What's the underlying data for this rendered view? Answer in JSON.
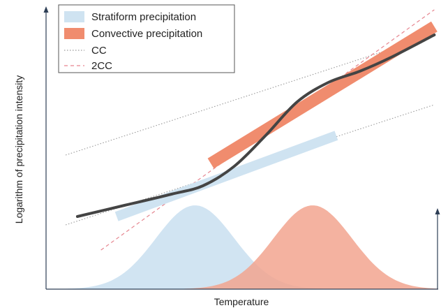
{
  "chart_data": {
    "type": "line",
    "title": "",
    "xlabel": "Temperature",
    "ylabel": "Logarithm of precipitation intensity",
    "x_scale": "qualitative",
    "y_scale": "log",
    "grid": false,
    "legend_position": "top-left",
    "series": [
      {
        "name": "Stratiform precipitation",
        "kind": "band",
        "color": "#cfe3f1",
        "x": [
          0.18,
          0.74
        ],
        "y": [
          0.26,
          0.55
        ]
      },
      {
        "name": "Convective precipitation",
        "kind": "band",
        "color": "#f08c6e",
        "x": [
          0.42,
          0.99
        ],
        "y": [
          0.45,
          0.94
        ]
      },
      {
        "name": "CC",
        "kind": "reference",
        "style": "dotted",
        "color": "#999999",
        "lines": [
          {
            "x": [
              0.05,
              0.99
            ],
            "y": [
              0.48,
              0.91
            ]
          },
          {
            "x": [
              0.05,
              0.99
            ],
            "y": [
              0.23,
              0.66
            ]
          }
        ]
      },
      {
        "name": "2CC",
        "kind": "reference",
        "style": "dashed",
        "color": "#e6858f",
        "lines": [
          {
            "x": [
              0.14,
              0.99
            ],
            "y": [
              0.14,
              1.0
            ]
          }
        ]
      },
      {
        "name": "",
        "kind": "combined",
        "color": "#444444",
        "x": [
          0.08,
          0.2,
          0.32,
          0.4,
          0.48,
          0.56,
          0.64,
          0.72,
          0.8,
          0.88,
          0.99
        ],
        "y": [
          0.26,
          0.3,
          0.34,
          0.37,
          0.44,
          0.55,
          0.67,
          0.74,
          0.78,
          0.83,
          0.91
        ]
      }
    ],
    "distributions": [
      {
        "series": "Stratiform precipitation",
        "color": "#cfe3f1",
        "peak_x": 0.38,
        "spread": 0.1,
        "peak_density": 0.3
      },
      {
        "series": "Convective precipitation",
        "color": "#f2a58f",
        "peak_x": 0.68,
        "spread": 0.1,
        "peak_density": 0.3
      }
    ],
    "secondary_axis": {
      "side": "right",
      "arrow": true,
      "label": ""
    }
  }
}
